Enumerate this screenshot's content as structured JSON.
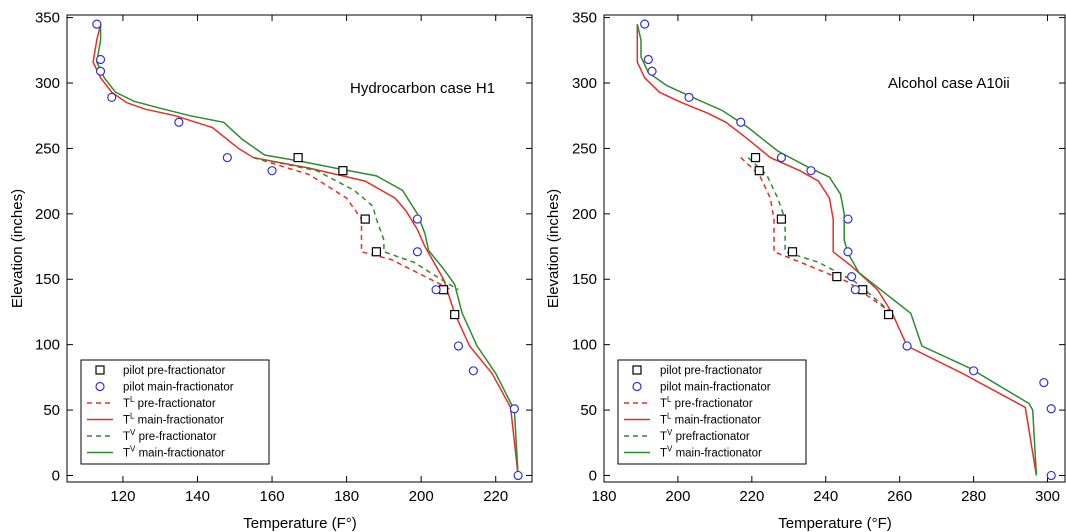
{
  "chart_data": [
    {
      "type": "line",
      "annotation": "Hydrocarbon case H1",
      "xlabel": "Temperature (F°)",
      "ylabel": "Elevation (inches)",
      "xlim": [
        105,
        230
      ],
      "ylim": [
        -5,
        352
      ],
      "xticks": [
        120,
        140,
        160,
        180,
        200,
        220
      ],
      "yticks": [
        0,
        50,
        100,
        150,
        200,
        250,
        300,
        350
      ],
      "legend_position": "bottom-left",
      "legend": [
        {
          "marker": "square",
          "color": "#000000",
          "base": "pilot pre-fractionator",
          "sup": ""
        },
        {
          "marker": "circle",
          "color": "#3333cc",
          "base": "pilot main-fractionator",
          "sup": ""
        },
        {
          "marker": "dashed",
          "color": "#e0302a",
          "base": "T",
          "sup": "L",
          "rest": " pre-fractionator"
        },
        {
          "marker": "solid",
          "color": "#e0302a",
          "base": "T",
          "sup": "L",
          "rest": " main-fractionator"
        },
        {
          "marker": "dashed",
          "color": "#2e8b2e",
          "base": "T",
          "sup": "V",
          "rest": " pre-fractionator"
        },
        {
          "marker": "solid",
          "color": "#2e8b2e",
          "base": "T",
          "sup": "V",
          "rest": " main-fractionator"
        }
      ],
      "series": [
        {
          "name": "pilot pre-fractionator",
          "kind": "square",
          "color": "#000000",
          "points": [
            [
              167,
              243
            ],
            [
              179,
              233
            ],
            [
              185,
              196
            ],
            [
              188,
              171
            ],
            [
              206,
              142
            ],
            [
              209,
              123
            ]
          ]
        },
        {
          "name": "pilot main-fractionator",
          "kind": "circle",
          "color": "#3333cc",
          "points": [
            [
              113,
              345
            ],
            [
              114,
              318
            ],
            [
              114,
              309
            ],
            [
              117,
              289
            ],
            [
              135,
              270
            ],
            [
              148,
              243
            ],
            [
              160,
              233
            ],
            [
              199,
              196
            ],
            [
              199,
              171
            ],
            [
              204,
              142
            ],
            [
              210,
              99
            ],
            [
              214,
              80
            ],
            [
              225,
              51
            ],
            [
              226,
              0
            ]
          ]
        },
        {
          "name": "T^L pre-fractionator",
          "kind": "dashed",
          "color": "#e0302a",
          "points": [
            [
              155,
              243
            ],
            [
              170,
              230
            ],
            [
              180,
              212
            ],
            [
              184,
              196
            ],
            [
              184,
              171
            ],
            [
              192,
              165
            ],
            [
              206,
              145
            ],
            [
              208,
              142
            ]
          ]
        },
        {
          "name": "T^L main-fractionator",
          "kind": "solid",
          "color": "#e0302a",
          "points": [
            [
              114,
              345
            ],
            [
              113,
              333
            ],
            [
              112,
              316
            ],
            [
              114,
              304
            ],
            [
              117,
              293
            ],
            [
              121,
              285
            ],
            [
              126,
              280
            ],
            [
              134,
              275
            ],
            [
              144,
              266
            ],
            [
              151,
              250
            ],
            [
              155,
              243
            ],
            [
              170,
              235
            ],
            [
              185,
              225
            ],
            [
              193,
              212
            ],
            [
              196,
              202
            ],
            [
              199,
              188
            ],
            [
              201,
              175
            ],
            [
              206,
              150
            ],
            [
              209,
              124
            ],
            [
              213,
              99
            ],
            [
              219,
              78
            ],
            [
              224,
              52
            ],
            [
              226,
              0
            ]
          ]
        },
        {
          "name": "T^V pre-fractionator",
          "kind": "dashed",
          "color": "#2e8b2e",
          "points": [
            [
              155,
              243
            ],
            [
              172,
              233
            ],
            [
              182,
              218
            ],
            [
              187,
              206
            ],
            [
              188,
              196
            ],
            [
              190,
              180
            ],
            [
              190,
              171
            ],
            [
              198,
              163
            ],
            [
              207,
              147
            ],
            [
              210,
              142
            ]
          ]
        },
        {
          "name": "T^V main-fractionator",
          "kind": "solid",
          "color": "#2e8b2e",
          "points": [
            [
              114,
              345
            ],
            [
              114,
              333
            ],
            [
              113,
              316
            ],
            [
              115,
              304
            ],
            [
              118,
              293
            ],
            [
              123,
              286
            ],
            [
              131,
              280
            ],
            [
              138,
              275
            ],
            [
              147,
              270
            ],
            [
              152,
              257
            ],
            [
              158,
              245
            ],
            [
              168,
              240
            ],
            [
              177,
              235
            ],
            [
              188,
              229
            ],
            [
              195,
              218
            ],
            [
              199,
              200
            ],
            [
              201,
              185
            ],
            [
              202,
              172
            ],
            [
              206,
              158
            ],
            [
              209,
              146
            ],
            [
              211,
              124
            ],
            [
              215,
              99
            ],
            [
              220,
              78
            ],
            [
              225,
              50
            ],
            [
              226,
              0
            ]
          ]
        }
      ]
    },
    {
      "type": "line",
      "annotation": "Alcohol case A10ii",
      "xlabel": "Temperature (°F)",
      "ylabel": "Elevation (inches)",
      "xlim": [
        180,
        305
      ],
      "ylim": [
        -5,
        352
      ],
      "xticks": [
        180,
        200,
        220,
        240,
        260,
        280,
        300
      ],
      "yticks": [
        0,
        50,
        100,
        150,
        200,
        250,
        300,
        350
      ],
      "legend_position": "bottom-left",
      "legend": [
        {
          "marker": "square",
          "color": "#000000",
          "base": "pilot pre-fractionator",
          "sup": ""
        },
        {
          "marker": "circle",
          "color": "#3333cc",
          "base": "pilot main-fractionator",
          "sup": ""
        },
        {
          "marker": "dashed",
          "color": "#e0302a",
          "base": "T",
          "sup": "L",
          "rest": " pre-fractionator"
        },
        {
          "marker": "solid",
          "color": "#e0302a",
          "base": "T",
          "sup": "L",
          "rest": " main-fractionator"
        },
        {
          "marker": "dashed",
          "color": "#2e8b2e",
          "base": "T",
          "sup": "V",
          "rest": " prefractionator"
        },
        {
          "marker": "solid",
          "color": "#2e8b2e",
          "base": "T",
          "sup": "V",
          "rest": " main-fractionator"
        }
      ],
      "series": [
        {
          "name": "pilot pre-fractionator",
          "kind": "square",
          "color": "#000000",
          "points": [
            [
              221,
              243
            ],
            [
              222,
              233
            ],
            [
              228,
              196
            ],
            [
              231,
              171
            ],
            [
              243,
              152
            ],
            [
              250,
              142
            ],
            [
              257,
              123
            ]
          ]
        },
        {
          "name": "pilot main-fractionator",
          "kind": "circle",
          "color": "#3333cc",
          "points": [
            [
              191,
              345
            ],
            [
              192,
              318
            ],
            [
              193,
              309
            ],
            [
              203,
              289
            ],
            [
              217,
              270
            ],
            [
              228,
              243
            ],
            [
              236,
              233
            ],
            [
              246,
              196
            ],
            [
              246,
              171
            ],
            [
              247,
              152
            ],
            [
              248,
              142
            ],
            [
              262,
              99
            ],
            [
              280,
              80
            ],
            [
              299,
              71
            ],
            [
              301,
              51
            ],
            [
              301,
              0
            ]
          ]
        },
        {
          "name": "T^L pre-fractionator",
          "kind": "dashed",
          "color": "#e0302a",
          "points": [
            [
              217,
              243
            ],
            [
              222,
              230
            ],
            [
              225,
              212
            ],
            [
              226,
              196
            ],
            [
              226,
              171
            ],
            [
              234,
              162
            ],
            [
              246,
              148
            ],
            [
              258,
              124
            ]
          ]
        },
        {
          "name": "T^L main-fractionator",
          "kind": "solid",
          "color": "#e0302a",
          "points": [
            [
              189,
              345
            ],
            [
              189,
              333
            ],
            [
              189,
              316
            ],
            [
              191,
              304
            ],
            [
              195,
              293
            ],
            [
              201,
              285
            ],
            [
              208,
              277
            ],
            [
              213,
              270
            ],
            [
              219,
              257
            ],
            [
              225,
              243
            ],
            [
              233,
              233
            ],
            [
              238,
              225
            ],
            [
              241,
              212
            ],
            [
              242,
              196
            ],
            [
              242,
              171
            ],
            [
              247,
              160
            ],
            [
              254,
              142
            ],
            [
              258,
              124
            ],
            [
              262,
              99
            ],
            [
              277,
              78
            ],
            [
              294,
              52
            ],
            [
              297,
              0
            ]
          ]
        },
        {
          "name": "T^V pre-fractionator",
          "kind": "dashed",
          "color": "#2e8b2e",
          "points": [
            [
              219,
              243
            ],
            [
              224,
              230
            ],
            [
              227,
              212
            ],
            [
              229,
              196
            ],
            [
              229,
              171
            ],
            [
              238,
              163
            ],
            [
              248,
              148
            ],
            [
              258,
              124
            ]
          ]
        },
        {
          "name": "T^V main-fractionator",
          "kind": "solid",
          "color": "#2e8b2e",
          "points": [
            [
              189,
              345
            ],
            [
              190,
              333
            ],
            [
              190,
              320
            ],
            [
              192,
              308
            ],
            [
              197,
              298
            ],
            [
              204,
              289
            ],
            [
              212,
              279
            ],
            [
              219,
              266
            ],
            [
              227,
              248
            ],
            [
              235,
              236
            ],
            [
              241,
              228
            ],
            [
              244,
              215
            ],
            [
              245,
              200
            ],
            [
              245,
              180
            ],
            [
              246,
              170
            ],
            [
              249,
              155
            ],
            [
              258,
              135
            ],
            [
              263,
              124
            ],
            [
              266,
              99
            ],
            [
              279,
              82
            ],
            [
              295,
              55
            ],
            [
              296,
              50
            ],
            [
              297,
              0
            ]
          ]
        }
      ]
    }
  ]
}
